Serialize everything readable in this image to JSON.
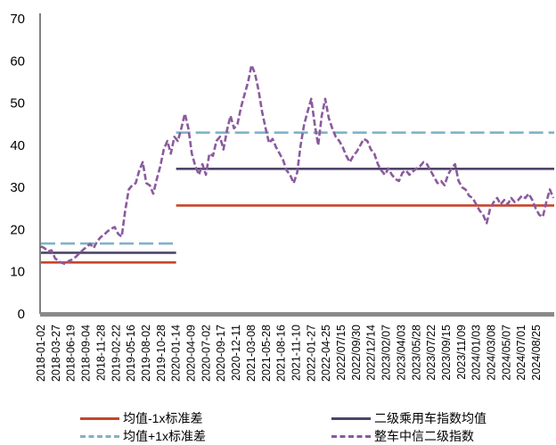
{
  "chart_data": {
    "type": "line",
    "title": "",
    "xlabel": "",
    "ylabel": "",
    "ylim": [
      0,
      70
    ],
    "yticks": [
      0,
      10,
      20,
      30,
      40,
      50,
      60,
      70
    ],
    "grid": false,
    "legend_position": "bottom",
    "x_tick_labels": [
      "2018-01-02",
      "2018-03-27",
      "2018-06-19",
      "2018-09-04",
      "2018-11-28",
      "2019-02-22",
      "2019-05-16",
      "2019-08-02",
      "2019-10-28",
      "2020-01-14",
      "2020-04-09",
      "2020-07-02",
      "2020-09-17",
      "2020-12-11",
      "2021-03-08",
      "2021-05-28",
      "2021-08-16",
      "2021-11-10",
      "2022-01-27",
      "2022-04-25",
      "2022/07/15",
      "2022/09/30",
      "2022/12/14",
      "2023/02/07",
      "2023/04/03",
      "2023/05/28",
      "2023/07/22",
      "2023/09/15",
      "2023/11/09",
      "2024/01/03",
      "2024/03/08",
      "2024/05/07",
      "2024/07/01",
      "2024/08/25"
    ],
    "series": [
      {
        "name": "均值-1x标准差",
        "color": "#c8442b",
        "style": "solid",
        "segments": [
          {
            "from": "2018-01-02",
            "to": "2020-01-14",
            "value": 12.2
          },
          {
            "from": "2020-01-14",
            "to": "2024/09/30",
            "value": 25.7
          }
        ]
      },
      {
        "name": "二级乘用车指数均值",
        "color": "#4e4468",
        "style": "solid",
        "segments": [
          {
            "from": "2018-01-02",
            "to": "2020-01-14",
            "value": 14.5
          },
          {
            "from": "2020-01-14",
            "to": "2024/09/30",
            "value": 34.4
          }
        ]
      },
      {
        "name": "均值+1x标准差",
        "color": "#7fb3c6",
        "style": "dashed",
        "segments": [
          {
            "from": "2018-01-02",
            "to": "2020-01-14",
            "value": 16.7
          },
          {
            "from": "2020-01-14",
            "to": "2024/09/30",
            "value": 43.0
          }
        ]
      },
      {
        "name": "整车中信二级指数",
        "color": "#8b5a9e",
        "style": "dashed",
        "points": [
          [
            0,
            16.0
          ],
          [
            1,
            15.6
          ],
          [
            2,
            14.8
          ],
          [
            3,
            15.1
          ],
          [
            4,
            13.2
          ],
          [
            5,
            12.5
          ],
          [
            6,
            12.1
          ],
          [
            7,
            11.8
          ],
          [
            8,
            12.6
          ],
          [
            9,
            12.9
          ],
          [
            10,
            13.6
          ],
          [
            11,
            14.4
          ],
          [
            12,
            15.2
          ],
          [
            13,
            15.9
          ],
          [
            14,
            16.6
          ],
          [
            15,
            15.6
          ],
          [
            16,
            17.2
          ],
          [
            17,
            18.2
          ],
          [
            18,
            18.8
          ],
          [
            19,
            19.6
          ],
          [
            20,
            20.2
          ],
          [
            21,
            20.6
          ],
          [
            22,
            19.0
          ],
          [
            23,
            18.3
          ],
          [
            24,
            24.5
          ],
          [
            25,
            29.5
          ],
          [
            26,
            30.5
          ],
          [
            27,
            31.0
          ],
          [
            28,
            34.0
          ],
          [
            29,
            36.0
          ],
          [
            30,
            31.0
          ],
          [
            31,
            30.5
          ],
          [
            32,
            28.5
          ],
          [
            33,
            32.0
          ],
          [
            34,
            35.0
          ],
          [
            35,
            39.0
          ],
          [
            36,
            41.0
          ],
          [
            37,
            38.0
          ],
          [
            38,
            42.0
          ],
          [
            39,
            41.0
          ],
          [
            40,
            44.0
          ],
          [
            41,
            47.5
          ],
          [
            42,
            44.0
          ],
          [
            43,
            38.0
          ],
          [
            44,
            35.0
          ],
          [
            45,
            33.0
          ],
          [
            46,
            35.5
          ],
          [
            47,
            33.0
          ],
          [
            48,
            38.0
          ],
          [
            49,
            37.5
          ],
          [
            50,
            41.0
          ],
          [
            51,
            42.0
          ],
          [
            52,
            39.0
          ],
          [
            53,
            43.5
          ],
          [
            54,
            47.0
          ],
          [
            55,
            44.0
          ],
          [
            56,
            45.0
          ],
          [
            57,
            49.0
          ],
          [
            58,
            52.0
          ],
          [
            59,
            55.0
          ],
          [
            60,
            59.0
          ],
          [
            61,
            57.0
          ],
          [
            62,
            53.0
          ],
          [
            63,
            48.0
          ],
          [
            64,
            44.0
          ],
          [
            65,
            40.5
          ],
          [
            66,
            41.5
          ],
          [
            67,
            39.5
          ],
          [
            68,
            38.0
          ],
          [
            69,
            36.5
          ],
          [
            70,
            34.0
          ],
          [
            71,
            33.0
          ],
          [
            72,
            31.0
          ],
          [
            73,
            33.5
          ],
          [
            74,
            40.0
          ],
          [
            75,
            45.0
          ],
          [
            76,
            48.0
          ],
          [
            77,
            51.0
          ],
          [
            78,
            45.0
          ],
          [
            79,
            40.0
          ],
          [
            80,
            47.0
          ],
          [
            81,
            51.0
          ],
          [
            82,
            46.5
          ],
          [
            83,
            44.0
          ],
          [
            84,
            42.0
          ],
          [
            85,
            41.0
          ],
          [
            86,
            39.5
          ],
          [
            87,
            37.5
          ],
          [
            88,
            36.0
          ],
          [
            89,
            37.5
          ],
          [
            90,
            38.5
          ],
          [
            91,
            40.0
          ],
          [
            92,
            41.5
          ],
          [
            93,
            41.0
          ],
          [
            94,
            39.0
          ],
          [
            95,
            38.0
          ],
          [
            96,
            35.5
          ],
          [
            97,
            34.0
          ],
          [
            98,
            33.0
          ],
          [
            99,
            34.5
          ],
          [
            100,
            33.0
          ],
          [
            101,
            32.0
          ],
          [
            102,
            31.5
          ],
          [
            103,
            33.5
          ],
          [
            104,
            34.0
          ],
          [
            105,
            33.0
          ],
          [
            106,
            33.8
          ],
          [
            107,
            34.5
          ],
          [
            108,
            35.0
          ],
          [
            109,
            36.0
          ],
          [
            110,
            35.5
          ],
          [
            111,
            34.0
          ],
          [
            112,
            32.5
          ],
          [
            113,
            31.0
          ],
          [
            114,
            31.5
          ],
          [
            115,
            30.5
          ],
          [
            116,
            33.0
          ],
          [
            117,
            34.5
          ],
          [
            118,
            35.5
          ],
          [
            119,
            31.5
          ],
          [
            120,
            30.0
          ],
          [
            121,
            29.5
          ],
          [
            122,
            28.0
          ],
          [
            123,
            27.5
          ],
          [
            124,
            26.0
          ],
          [
            125,
            24.5
          ],
          [
            126,
            23.5
          ],
          [
            127,
            21.5
          ],
          [
            128,
            25.0
          ],
          [
            129,
            26.5
          ],
          [
            130,
            27.5
          ],
          [
            131,
            26.0
          ],
          [
            132,
            27.0
          ],
          [
            133,
            26.0
          ],
          [
            134,
            27.5
          ],
          [
            135,
            26.5
          ],
          [
            136,
            27.0
          ],
          [
            137,
            28.0
          ],
          [
            138,
            27.5
          ],
          [
            139,
            28.5
          ],
          [
            140,
            27.0
          ],
          [
            141,
            25.0
          ],
          [
            142,
            23.5
          ],
          [
            143,
            23.0
          ],
          [
            144,
            26.5
          ],
          [
            145,
            29.5
          ],
          [
            146,
            27.5
          ]
        ],
        "x_index_range": [
          0,
          146
        ]
      }
    ]
  }
}
